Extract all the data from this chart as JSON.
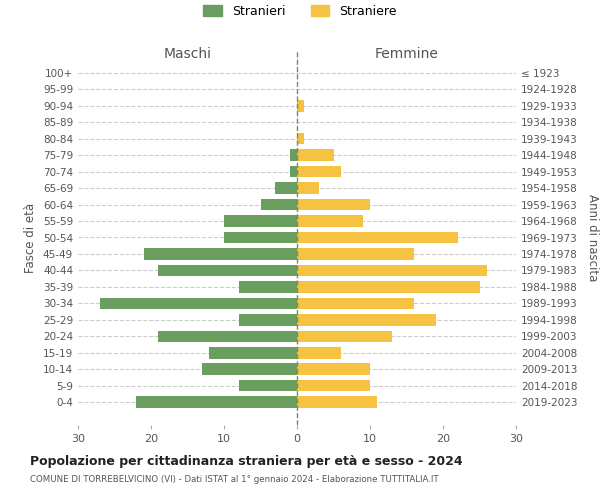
{
  "age_groups": [
    "0-4",
    "5-9",
    "10-14",
    "15-19",
    "20-24",
    "25-29",
    "30-34",
    "35-39",
    "40-44",
    "45-49",
    "50-54",
    "55-59",
    "60-64",
    "65-69",
    "70-74",
    "75-79",
    "80-84",
    "85-89",
    "90-94",
    "95-99",
    "100+"
  ],
  "birth_years": [
    "2019-2023",
    "2014-2018",
    "2009-2013",
    "2004-2008",
    "1999-2003",
    "1994-1998",
    "1989-1993",
    "1984-1988",
    "1979-1983",
    "1974-1978",
    "1969-1973",
    "1964-1968",
    "1959-1963",
    "1954-1958",
    "1949-1953",
    "1944-1948",
    "1939-1943",
    "1934-1938",
    "1929-1933",
    "1924-1928",
    "≤ 1923"
  ],
  "males": [
    22,
    8,
    13,
    12,
    19,
    8,
    27,
    8,
    19,
    21,
    10,
    10,
    5,
    3,
    1,
    1,
    0,
    0,
    0,
    0,
    0
  ],
  "females": [
    11,
    10,
    10,
    6,
    13,
    19,
    16,
    25,
    26,
    16,
    22,
    9,
    10,
    3,
    6,
    5,
    1,
    0,
    1,
    0,
    0
  ],
  "male_color": "#6a9e5e",
  "female_color": "#f5c242",
  "title": "Popolazione per cittadinanza straniera per età e sesso - 2024",
  "subtitle": "COMUNE DI TORREBELVICINO (VI) - Dati ISTAT al 1° gennaio 2024 - Elaborazione TUTTITALIA.IT",
  "xlabel_left": "Maschi",
  "xlabel_right": "Femmine",
  "ylabel_left": "Fasce di età",
  "ylabel_right": "Anni di nascita",
  "legend_male": "Stranieri",
  "legend_female": "Straniere",
  "xlim": 30,
  "background_color": "#ffffff",
  "grid_color": "#cccccc"
}
